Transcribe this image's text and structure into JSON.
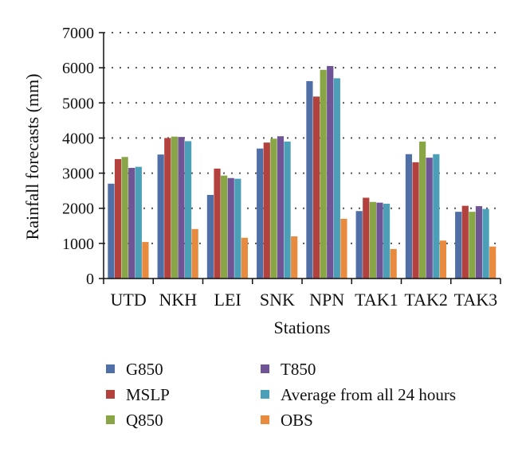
{
  "chart_data": {
    "type": "bar",
    "title": "",
    "xlabel": "Stations",
    "ylabel": "Rainfall forecasts (mm)",
    "ylim": [
      0,
      7000
    ],
    "yticks": [
      0,
      1000,
      2000,
      3000,
      4000,
      5000,
      6000,
      7000
    ],
    "grid": "horizontal dotted",
    "legend_position": "bottom",
    "categories": [
      "UTD",
      "NKH",
      "LEI",
      "SNK",
      "NPN",
      "TAK1",
      "TAK2",
      "TAK3"
    ],
    "series": [
      {
        "name": "G850",
        "color": "#4F6FA6",
        "values": [
          2700,
          3530,
          2380,
          3700,
          5620,
          1920,
          3540,
          1900
        ]
      },
      {
        "name": "MSLP",
        "color": "#B3413E",
        "values": [
          3400,
          4000,
          3130,
          3870,
          5180,
          2300,
          3310,
          2070
        ]
      },
      {
        "name": "Q850",
        "color": "#88A646",
        "values": [
          3460,
          4040,
          2930,
          3980,
          5940,
          2180,
          3900,
          1900
        ]
      },
      {
        "name": "T850",
        "color": "#6F5496",
        "values": [
          3150,
          4030,
          2860,
          4050,
          6050,
          2160,
          3440,
          2060
        ]
      },
      {
        "name": "Average from all 24 hours",
        "color": "#4BA0B8",
        "values": [
          3180,
          3910,
          2840,
          3900,
          5700,
          2130,
          3540,
          1980
        ]
      },
      {
        "name": "OBS",
        "color": "#E98B3E",
        "values": [
          1040,
          1410,
          1160,
          1200,
          1700,
          840,
          1080,
          910
        ]
      }
    ]
  }
}
